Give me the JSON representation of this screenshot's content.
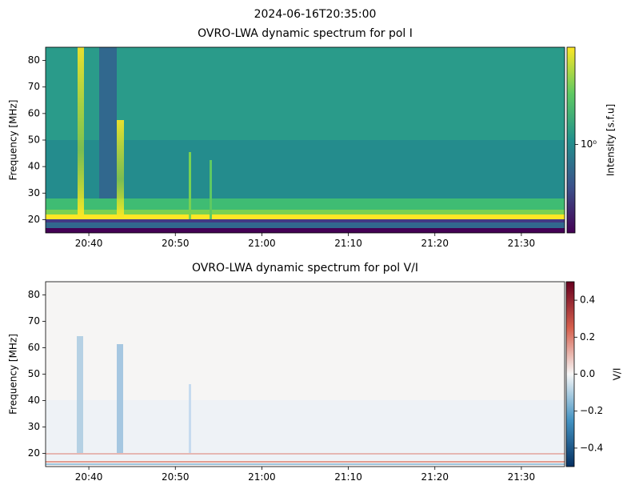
{
  "title": "2024-06-16T20:35:00",
  "chart_data": [
    {
      "type": "heatmap",
      "title": "OVRO-LWA dynamic spectrum for pol I",
      "ylabel": "Frequency [MHz]",
      "xlim": [
        "20:35",
        "21:35"
      ],
      "xticks": [
        "20:40",
        "20:50",
        "21:00",
        "21:10",
        "21:20",
        "21:30"
      ],
      "ylim": [
        15,
        85
      ],
      "yticks": [
        20,
        30,
        40,
        50,
        60,
        70,
        80
      ],
      "colormap": "viridis",
      "colorbar_label": "Intensity [s.f.u]",
      "cscale": "log",
      "clim": [
        0.32,
        3.5
      ],
      "cticks": [
        {
          "value": 1,
          "label": "10⁰"
        }
      ]
    },
    {
      "type": "heatmap",
      "title": "OVRO-LWA dynamic spectrum for pol V/I",
      "ylabel": "Frequency [MHz]",
      "xlim": [
        "20:35",
        "21:35"
      ],
      "xticks": [
        "20:40",
        "20:50",
        "21:00",
        "21:10",
        "21:20",
        "21:30"
      ],
      "ylim": [
        15,
        85
      ],
      "yticks": [
        20,
        30,
        40,
        50,
        60,
        70,
        80
      ],
      "colormap": "RdBu_r",
      "colorbar_label": "V/I",
      "cscale": "linear",
      "clim": [
        -0.5,
        0.5
      ],
      "cticks": [
        {
          "value": -0.4,
          "label": "−0.4"
        },
        {
          "value": -0.2,
          "label": "−0.2"
        },
        {
          "value": 0,
          "label": "0.0"
        },
        0.2,
        0.4
      ]
    }
  ]
}
